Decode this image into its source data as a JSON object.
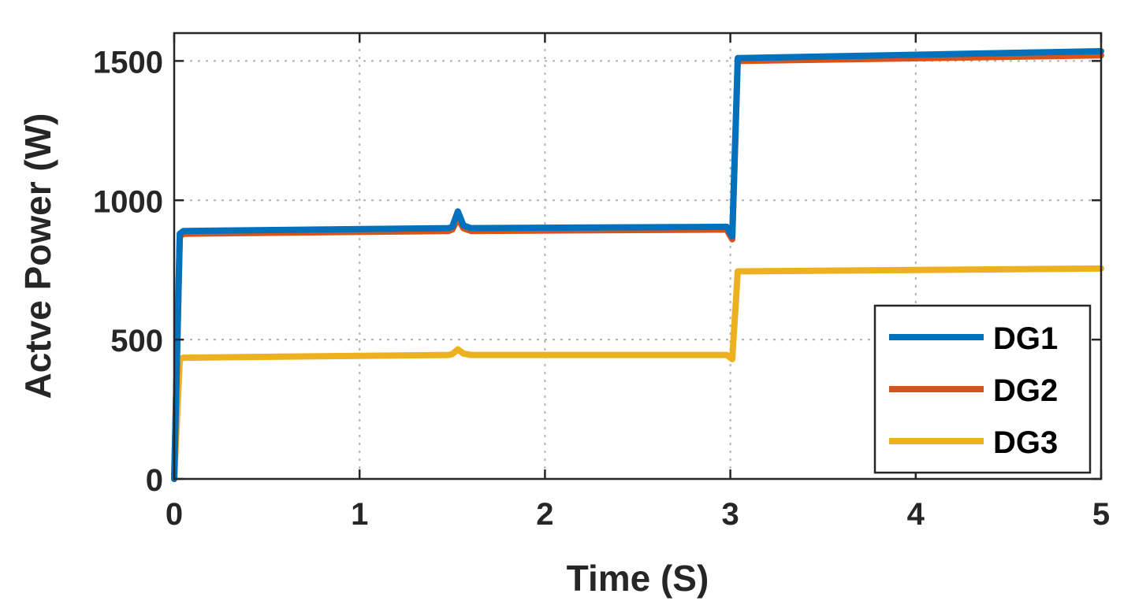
{
  "chart_data": {
    "type": "line",
    "xlabel": "Time (S)",
    "ylabel": "Actve Power (W)",
    "xlim": [
      0,
      5
    ],
    "ylim": [
      0,
      1600
    ],
    "xticks": [
      0,
      1,
      2,
      3,
      4,
      5
    ],
    "xtick_labels": [
      "0",
      "1",
      "2",
      "3",
      "4",
      "5"
    ],
    "yticks": [
      0,
      500,
      1000,
      1500
    ],
    "ytick_labels": [
      "0",
      "500",
      "1000",
      "1500"
    ],
    "grid": true,
    "legend_position": "bottom-right",
    "series": [
      {
        "name": "DG1",
        "color": "#0072BD",
        "points": [
          [
            0,
            0
          ],
          [
            0.03,
            880
          ],
          [
            0.05,
            890
          ],
          [
            1.48,
            900
          ],
          [
            1.5,
            905
          ],
          [
            1.53,
            960
          ],
          [
            1.56,
            910
          ],
          [
            1.6,
            900
          ],
          [
            2.98,
            905
          ],
          [
            3.01,
            870
          ],
          [
            3.04,
            1510
          ],
          [
            5,
            1535
          ]
        ]
      },
      {
        "name": "DG2",
        "color": "#D95319",
        "points": [
          [
            0,
            0
          ],
          [
            0.03,
            870
          ],
          [
            0.05,
            880
          ],
          [
            1.48,
            890
          ],
          [
            1.5,
            895
          ],
          [
            1.53,
            935
          ],
          [
            1.56,
            900
          ],
          [
            1.6,
            890
          ],
          [
            2.98,
            895
          ],
          [
            3.01,
            860
          ],
          [
            3.04,
            1500
          ],
          [
            5,
            1520
          ]
        ]
      },
      {
        "name": "DG3",
        "color": "#EDB120",
        "points": [
          [
            0,
            0
          ],
          [
            0.03,
            430
          ],
          [
            0.05,
            435
          ],
          [
            1.48,
            445
          ],
          [
            1.5,
            448
          ],
          [
            1.53,
            465
          ],
          [
            1.56,
            450
          ],
          [
            1.6,
            445
          ],
          [
            2.98,
            445
          ],
          [
            3.01,
            430
          ],
          [
            3.04,
            745
          ],
          [
            5,
            755
          ]
        ]
      }
    ]
  }
}
